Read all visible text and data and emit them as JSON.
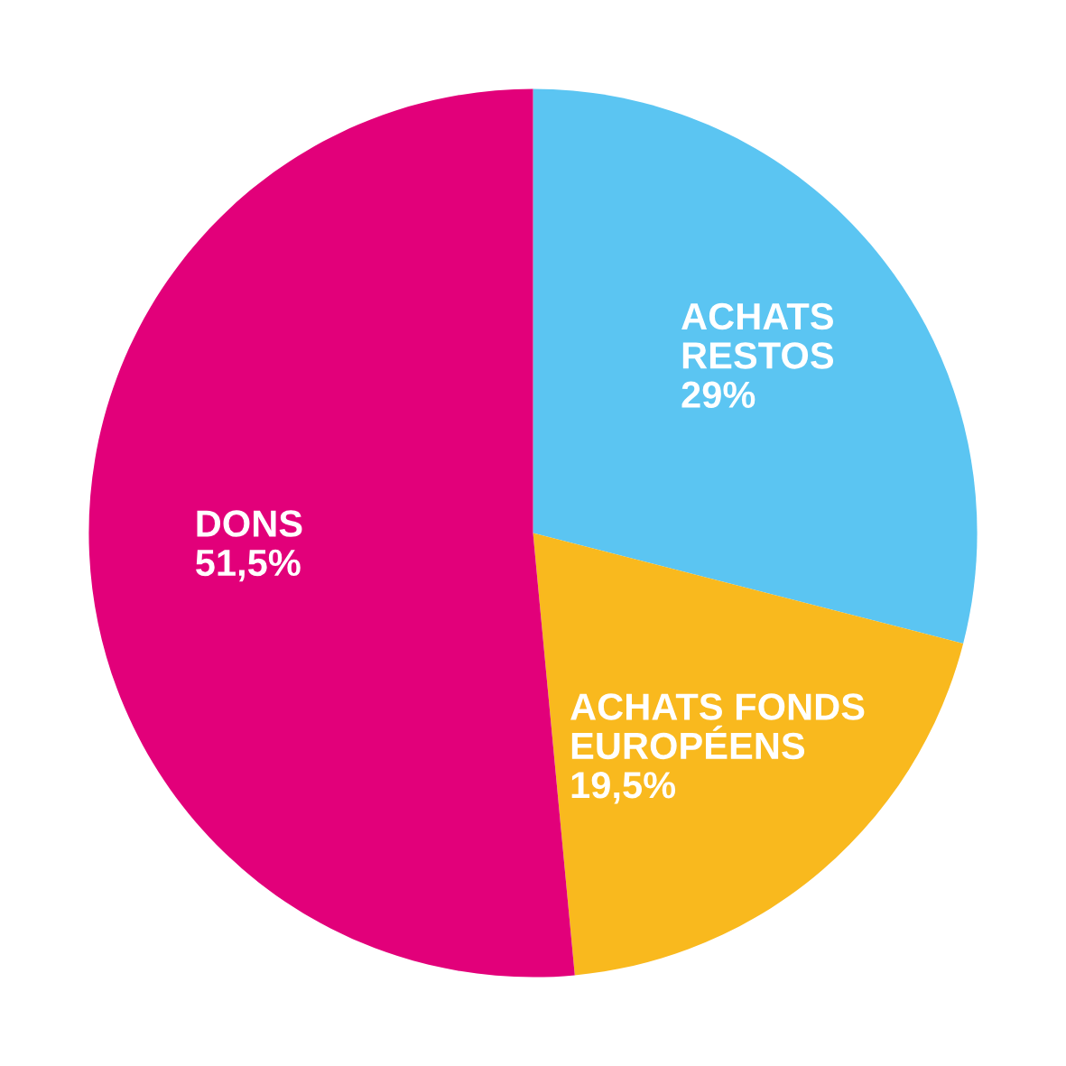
{
  "chart_data": {
    "type": "pie",
    "categories": [
      "ACHATS\nRESTOS",
      "ACHATS FONDS\nEUROPÉENS",
      "DONS"
    ],
    "values": [
      29,
      19.5,
      51.5
    ],
    "value_labels": [
      "29%",
      "19,5%",
      "51,5%"
    ],
    "colors": [
      "#5bc5f2",
      "#f9b91e",
      "#e2007a"
    ],
    "legend": false
  }
}
